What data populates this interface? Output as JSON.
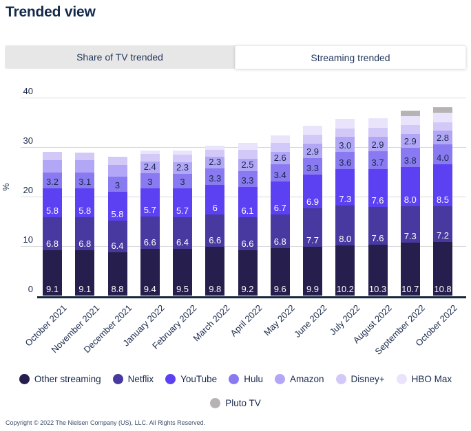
{
  "page": {
    "title": "Trended view",
    "footer": "Copyright © 2022 The Nielsen Company (US), LLC. All Rights Reserved."
  },
  "tabs": [
    {
      "label": "Share of TV trended",
      "active": false
    },
    {
      "label": "Streaming trended",
      "active": true
    }
  ],
  "colors": {
    "text_navy": "#17294b",
    "gridline": "#d8d8d8",
    "axis_line": "#16263e",
    "tab_strip_bg": "#e8e7e7",
    "active_tab_bg": "#ffffff"
  },
  "chart_data": {
    "type": "bar",
    "stacked": true,
    "ylabel": "%",
    "yticks": [
      0,
      10,
      20,
      30,
      40
    ],
    "ylim": [
      0,
      40
    ],
    "grid": true,
    "legend_position": "bottom",
    "legend_split": 7,
    "categories": [
      "October 2021",
      "November 2021",
      "December 2021",
      "January 2022",
      "February 2022",
      "March 2022",
      "April 2022",
      "May 2022",
      "June 2022",
      "July 2022",
      "August 2022",
      "September 2022",
      "October 2022"
    ],
    "series": [
      {
        "name": "Other streaming",
        "color": "#261f4d",
        "label_color": "#ffffff",
        "values": [
          9.1,
          9.1,
          8.8,
          9.4,
          9.5,
          9.8,
          9.2,
          9.6,
          9.9,
          10.2,
          10.3,
          10.7,
          10.8
        ],
        "labels": [
          "9.1",
          "9.1",
          "8.8",
          "9.4",
          "9.5",
          "9.8",
          "9.2",
          "9.6",
          "9.9",
          "10.2",
          "10.3",
          "10.7",
          "10.8"
        ]
      },
      {
        "name": "Netflix",
        "color": "#47399f",
        "label_color": "#ffffff",
        "values": [
          6.8,
          6.8,
          6.4,
          6.6,
          6.4,
          6.6,
          6.6,
          6.8,
          7.7,
          8.0,
          7.6,
          7.3,
          7.2
        ],
        "labels": [
          "6.8",
          "6.8",
          "6.4",
          "6.6",
          "6.4",
          "6.6",
          "6.6",
          "6.8",
          "7.7",
          "8.0",
          "7.6",
          "7.3",
          "7.2"
        ]
      },
      {
        "name": "YouTube",
        "color": "#5b41f2",
        "label_color": "#ffffff",
        "values": [
          5.8,
          5.8,
          5.8,
          5.7,
          5.7,
          6.0,
          6.1,
          6.7,
          6.9,
          7.3,
          7.6,
          8.0,
          8.5
        ],
        "labels": [
          "5.8",
          "5.8",
          "5.8",
          "5.7",
          "5.7",
          "6",
          "6.1",
          "6.7",
          "6.9",
          "7.3",
          "7.6",
          "8.0",
          "8.5"
        ]
      },
      {
        "name": "Hulu",
        "color": "#8a7af2",
        "label_color": "#17294b",
        "values": [
          3.2,
          3.1,
          3.0,
          3.0,
          3.0,
          3.3,
          3.3,
          3.4,
          3.3,
          3.6,
          3.7,
          3.8,
          4.0
        ],
        "labels": [
          "3.2",
          "3.1",
          "3",
          "3",
          "3",
          "3.3",
          "3.3",
          "3.4",
          "3.3",
          "3.6",
          "3.7",
          "3.8",
          "4.0"
        ]
      },
      {
        "name": "Amazon",
        "color": "#b2a7f6",
        "label_color": "#17294b",
        "values": [
          2.5,
          2.5,
          2.4,
          2.4,
          2.3,
          2.3,
          2.5,
          2.6,
          2.9,
          3.0,
          2.9,
          2.9,
          2.8
        ],
        "labels": [
          null,
          null,
          null,
          "2.4",
          "2.3",
          "2.3",
          "2.5",
          "2.6",
          "2.9",
          "3.0",
          "2.9",
          "2.9",
          "2.8"
        ]
      },
      {
        "name": "Disney+",
        "color": "#d3c9f8",
        "label_color": "#17294b",
        "values": [
          1.6,
          1.6,
          1.7,
          1.5,
          1.6,
          1.5,
          1.7,
          1.7,
          1.8,
          1.7,
          1.8,
          1.7,
          1.7
        ],
        "labels": null
      },
      {
        "name": "HBO Max",
        "color": "#e9e4fc",
        "label_color": "#17294b",
        "values": [
          0,
          0,
          0,
          0.7,
          0.8,
          0.8,
          1.5,
          1.5,
          1.8,
          1.9,
          2.0,
          1.9,
          2.0
        ],
        "labels": null
      },
      {
        "name": "Pluto TV",
        "color": "#b7b3b3",
        "label_color": "#17294b",
        "values": [
          0,
          0,
          0,
          0,
          0,
          0,
          0,
          0,
          0,
          0,
          0,
          1.0,
          1.0
        ],
        "labels": null
      }
    ]
  }
}
